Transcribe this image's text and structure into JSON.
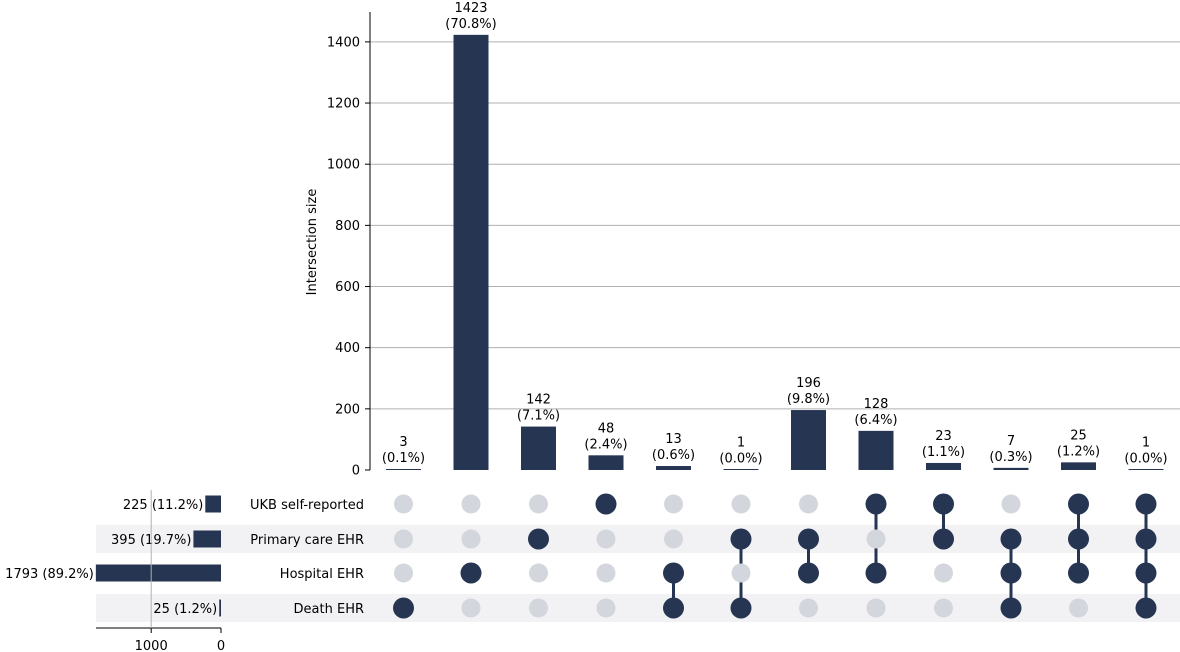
{
  "chart_data": {
    "type": "upset",
    "ylabel": "Intersection size",
    "ylim": [
      0,
      1500
    ],
    "yticks": [
      0,
      200,
      400,
      600,
      800,
      1000,
      1200,
      1400
    ],
    "grid": true,
    "sets": [
      {
        "name": "UKB self-reported",
        "size": 225,
        "label": "225 (11.2%)"
      },
      {
        "name": "Primary care EHR",
        "size": 395,
        "label": "395 (19.7%)"
      },
      {
        "name": "Hospital EHR",
        "size": 1793,
        "label": "1793 (89.2%)"
      },
      {
        "name": "Death EHR",
        "size": 25,
        "label": "25 (1.2%)"
      }
    ],
    "set_size_axis": {
      "ticks": [
        1000,
        0
      ],
      "tick_labels": [
        "1000",
        "0"
      ],
      "max": 1800
    },
    "intersections": [
      {
        "members": [
          3
        ],
        "value": 3,
        "count_label": "3",
        "pct_label": "(0.1%)"
      },
      {
        "members": [
          2
        ],
        "value": 1423,
        "count_label": "1423",
        "pct_label": "(70.8%)"
      },
      {
        "members": [
          1
        ],
        "value": 142,
        "count_label": "142",
        "pct_label": "(7.1%)"
      },
      {
        "members": [
          0
        ],
        "value": 48,
        "count_label": "48",
        "pct_label": "(2.4%)"
      },
      {
        "members": [
          2,
          3
        ],
        "value": 13,
        "count_label": "13",
        "pct_label": "(0.6%)"
      },
      {
        "members": [
          1,
          3
        ],
        "value": 1,
        "count_label": "1",
        "pct_label": "(0.0%)"
      },
      {
        "members": [
          1,
          2
        ],
        "value": 196,
        "count_label": "196",
        "pct_label": "(9.8%)"
      },
      {
        "members": [
          0,
          2
        ],
        "value": 128,
        "count_label": "128",
        "pct_label": "(6.4%)"
      },
      {
        "members": [
          0,
          1
        ],
        "value": 23,
        "count_label": "23",
        "pct_label": "(1.1%)"
      },
      {
        "members": [
          1,
          2,
          3
        ],
        "value": 7,
        "count_label": "7",
        "pct_label": "(0.3%)"
      },
      {
        "members": [
          0,
          1,
          2
        ],
        "value": 25,
        "count_label": "25",
        "pct_label": "(1.2%)"
      },
      {
        "members": [
          0,
          1,
          2,
          3
        ],
        "value": 1,
        "count_label": "1",
        "pct_label": "(0.0%)"
      }
    ],
    "colors": {
      "active": "#263552",
      "inactive": "#d3d6dc",
      "shade": "#f2f2f4",
      "grid": "#b0b0b0"
    }
  }
}
